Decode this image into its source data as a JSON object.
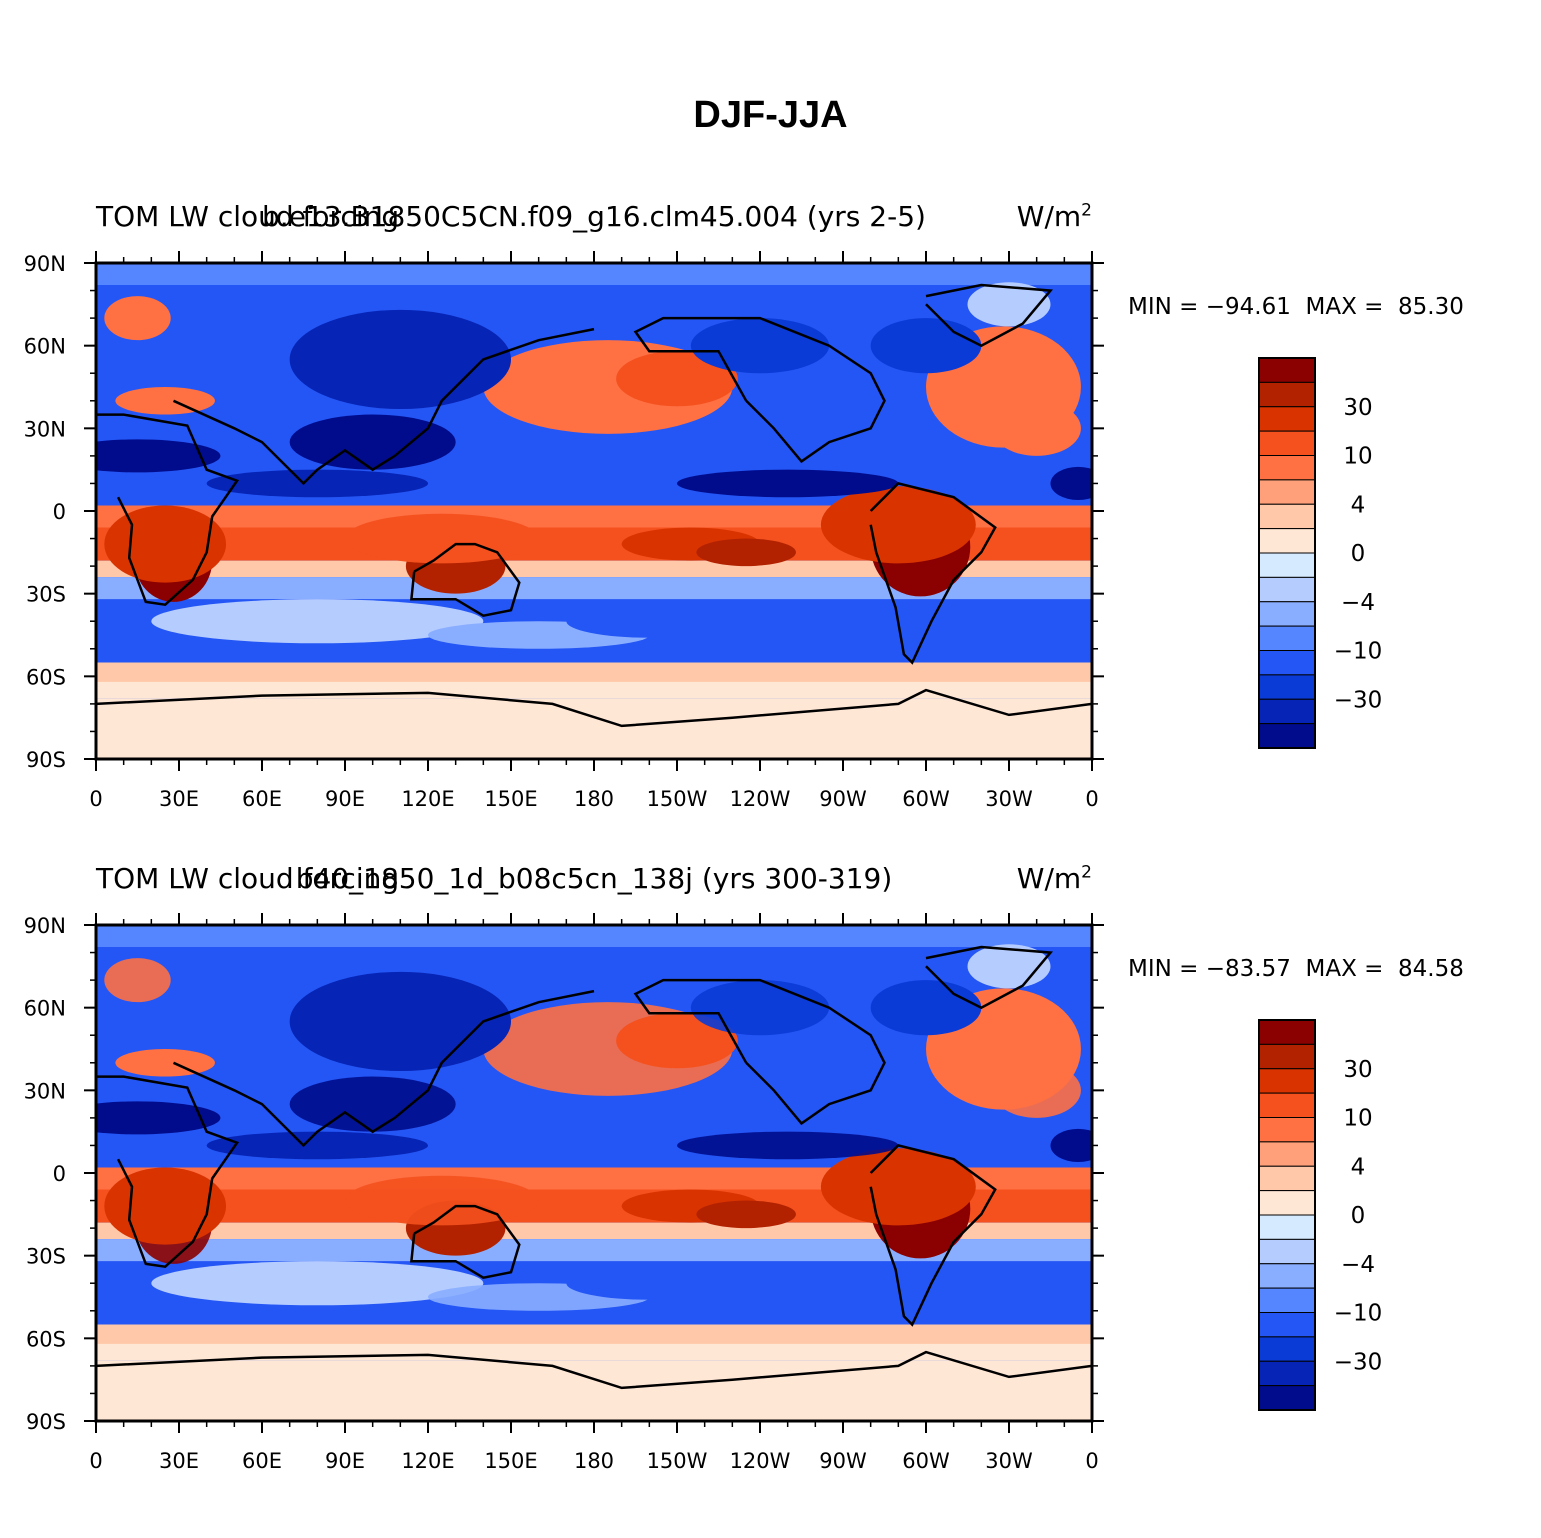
{
  "title": "DJF-JJA",
  "panels": [
    {
      "case_title": "b.e13.B1850C5CN.f09_g16.clm45.004 (yrs 2-5)",
      "variable": "TOM LW cloud forcing",
      "units_base": "W/m",
      "units_exp": "2",
      "min_label": "MIN =",
      "min_value": "−94.61",
      "max_label": "MAX =",
      "max_value": "85.30"
    },
    {
      "case_title": "b40_1850_1d_b08c5cn_138j (yrs 300-319)",
      "variable": "TOM LW cloud forcing",
      "units_base": "W/m",
      "units_exp": "2",
      "min_label": "MIN =",
      "min_value": "−83.57",
      "max_label": "MAX =",
      "max_value": "84.58"
    }
  ],
  "chart_data": {
    "type": "heatmap",
    "projection": "cylindrical-equidistant",
    "x_ticks": [
      "0",
      "30E",
      "60E",
      "90E",
      "120E",
      "150E",
      "180",
      "150W",
      "120W",
      "90W",
      "60W",
      "30W",
      "0"
    ],
    "y_ticks": [
      "90N",
      "60N",
      "30N",
      "0",
      "30S",
      "60S",
      "90S"
    ],
    "xlim": [
      0,
      360
    ],
    "ylim": [
      -90,
      90
    ],
    "colorbar": {
      "colors": [
        "#8b0000",
        "#b22200",
        "#d93400",
        "#f4511e",
        "#ff7043",
        "#ffa07a",
        "#ffc8a8",
        "#ffe7d6",
        "#d6eaff",
        "#b5ccff",
        "#8aaeff",
        "#5585ff",
        "#2456f5",
        "#0a3bd6",
        "#0624b5",
        "#000c8c"
      ],
      "labels": [
        "30",
        "10",
        "4",
        "0",
        "−4",
        "−10",
        "−30"
      ],
      "label_positions": [
        2,
        4,
        6,
        8,
        10,
        12,
        14
      ]
    }
  }
}
